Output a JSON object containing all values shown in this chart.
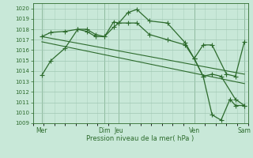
{
  "bg_color": "#c8e8d8",
  "grid_color": "#a0c8b4",
  "line_color": "#2d6b2d",
  "xlabel": "Pression niveau de la mer( hPa )",
  "ylim": [
    1009,
    1020.5
  ],
  "xlim": [
    0,
    12
  ],
  "day_positions": [
    0.5,
    4.0,
    4.8,
    9.0,
    11.8
  ],
  "day_labels": [
    "Mer",
    "Dim",
    "Jeu",
    "Ven",
    "Sam"
  ],
  "vline_positions": [
    0.5,
    4.0,
    4.8,
    9.0,
    11.8
  ],
  "series1_x": [
    0.5,
    1.0,
    1.8,
    2.5,
    3.0,
    3.5,
    4.0,
    4.5,
    4.8,
    5.3,
    5.8,
    6.5,
    7.5,
    8.5,
    9.0,
    9.5,
    10.0,
    10.8,
    11.3,
    11.8
  ],
  "series1_y": [
    1013.6,
    1015.0,
    1016.2,
    1018.0,
    1017.8,
    1017.3,
    1017.3,
    1018.7,
    1018.6,
    1019.6,
    1019.9,
    1018.8,
    1018.6,
    1016.7,
    1015.2,
    1016.5,
    1016.5,
    1013.7,
    1013.5,
    1016.8
  ],
  "series2_x": [
    0.5,
    1.0,
    1.8,
    2.5,
    3.0,
    3.5,
    4.0,
    4.5,
    4.8,
    5.3,
    5.8,
    6.5,
    7.5,
    8.5,
    9.0,
    9.5,
    10.0,
    10.5,
    11.3,
    11.8
  ],
  "series2_y": [
    1017.3,
    1017.7,
    1017.8,
    1018.0,
    1018.0,
    1017.5,
    1017.3,
    1018.2,
    1018.6,
    1018.6,
    1018.6,
    1017.5,
    1017.0,
    1016.5,
    1015.2,
    1013.5,
    1013.7,
    1013.5,
    1011.3,
    1010.7
  ],
  "series3_x": [
    0.5,
    11.8
  ],
  "series3_y": [
    1017.3,
    1013.7
  ],
  "series4_x": [
    0.5,
    11.8
  ],
  "series4_y": [
    1016.8,
    1012.8
  ],
  "series5_x": [
    9.0,
    9.5,
    10.0,
    10.5,
    11.0,
    11.3,
    11.8
  ],
  "series5_y": [
    1015.2,
    1013.5,
    1009.8,
    1009.3,
    1011.3,
    1010.7,
    1010.7
  ]
}
